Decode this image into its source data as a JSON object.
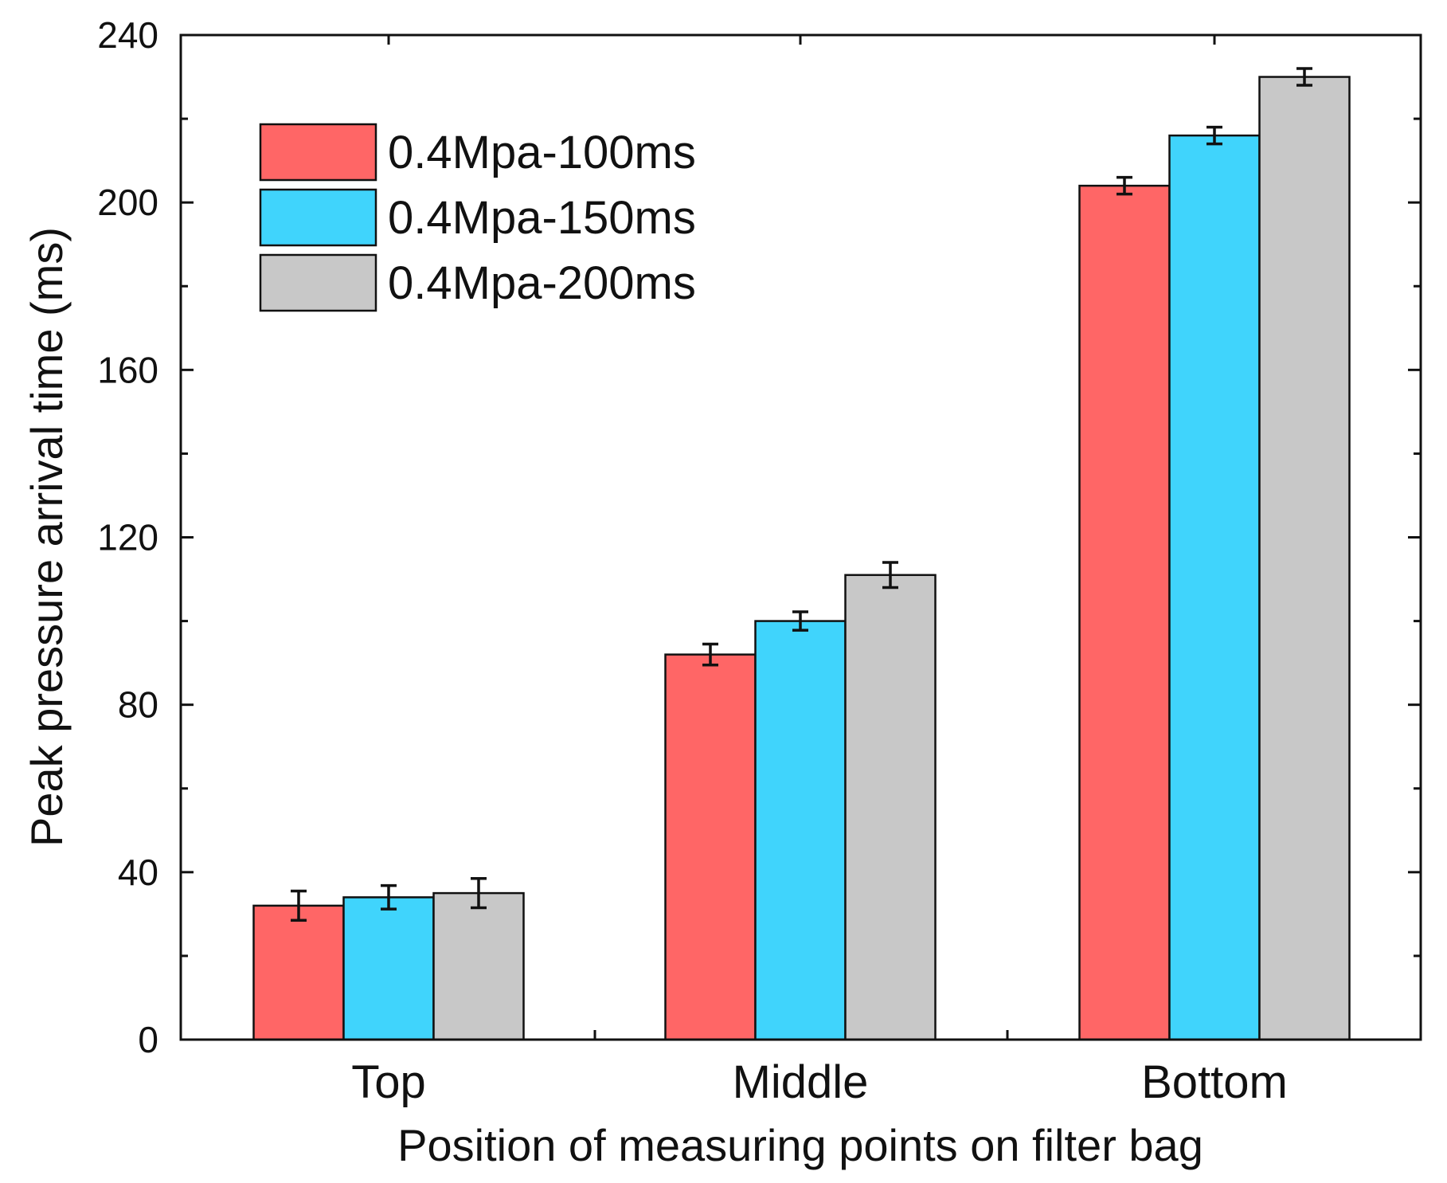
{
  "chart_data": {
    "type": "bar",
    "title": "",
    "xlabel": "Position of measuring points on filter bag",
    "ylabel": "Peak pressure arrival time (ms)",
    "ylim": [
      0,
      240
    ],
    "yticks": [
      0,
      40,
      80,
      120,
      160,
      200,
      240
    ],
    "categories": [
      "Top",
      "Middle",
      "Bottom"
    ],
    "legend_position": "top-left",
    "series": [
      {
        "name": "0.4Mpa-100ms",
        "color": "#ff6666",
        "values": [
          32,
          92,
          204
        ],
        "errors": [
          3.5,
          2.5,
          2
        ]
      },
      {
        "name": "0.4Mpa-150ms",
        "color": "#40d4fc",
        "values": [
          34,
          100,
          216
        ],
        "errors": [
          2.8,
          2.2,
          2
        ]
      },
      {
        "name": "0.4Mpa-200ms",
        "color": "#c8c8c8",
        "values": [
          35,
          111,
          230
        ],
        "errors": [
          3.5,
          3,
          2
        ]
      }
    ]
  }
}
